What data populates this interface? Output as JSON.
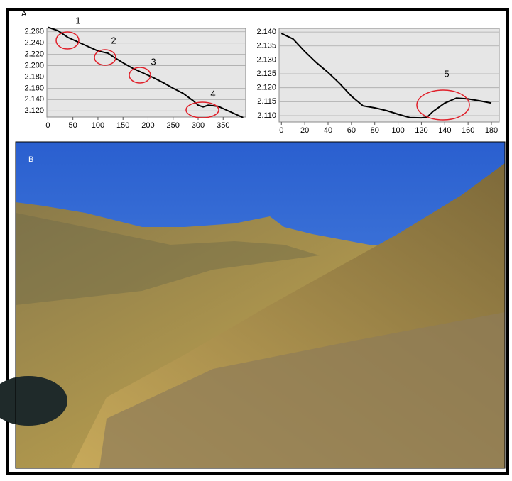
{
  "panel_labels": [
    "A",
    "B"
  ],
  "chart_data": [
    {
      "type": "line",
      "color": "#000000",
      "grid": true,
      "x": [
        0,
        20,
        40,
        60,
        80,
        100,
        120,
        130,
        150,
        170,
        190,
        210,
        230,
        250,
        270,
        290,
        300,
        310,
        320,
        340,
        360,
        380,
        390
      ],
      "values": [
        2.268,
        2.262,
        2.25,
        2.242,
        2.234,
        2.226,
        2.222,
        2.216,
        2.205,
        2.195,
        2.187,
        2.179,
        2.17,
        2.16,
        2.151,
        2.138,
        2.13,
        2.127,
        2.13,
        2.128,
        2.12,
        2.112,
        2.108
      ],
      "xlim": [
        -2,
        395
      ],
      "ylim": [
        2.109,
        2.266
      ],
      "xticks": [
        0,
        50,
        100,
        150,
        200,
        250,
        300,
        350
      ],
      "yticks": [
        {
          "value": 2.12,
          "label": "2.120"
        },
        {
          "value": 2.14,
          "label": "2.140"
        },
        {
          "value": 2.16,
          "label": "2.160"
        },
        {
          "value": 2.18,
          "label": "2.180"
        },
        {
          "value": 2.2,
          "label": "2.200"
        },
        {
          "value": 2.22,
          "label": "2.220"
        },
        {
          "value": 2.24,
          "label": "2.240"
        },
        {
          "value": 2.26,
          "label": "2.260"
        }
      ],
      "annotations": [
        "1",
        "2",
        "3",
        "4"
      ]
    },
    {
      "type": "line",
      "color": "#000000",
      "grid": true,
      "x": [
        0,
        10,
        20,
        30,
        40,
        50,
        60,
        70,
        80,
        90,
        100,
        110,
        120,
        125,
        130,
        140,
        150,
        160,
        170,
        180
      ],
      "values": [
        2.1395,
        2.1375,
        2.133,
        2.129,
        2.1255,
        2.1215,
        2.117,
        2.1135,
        2.1128,
        2.1118,
        2.1105,
        2.1093,
        2.1092,
        2.1095,
        2.1115,
        2.1145,
        2.1163,
        2.116,
        2.1153,
        2.1145
      ],
      "xlim": [
        -2,
        186.7
      ],
      "ylim": [
        2.1077,
        2.1413
      ],
      "xticks": [
        0,
        20,
        40,
        60,
        80,
        100,
        120,
        140,
        160,
        180
      ],
      "yticks": [
        {
          "value": 2.11,
          "label": "2.110"
        },
        {
          "value": 2.115,
          "label": "2.115"
        },
        {
          "value": 2.12,
          "label": "2.120"
        },
        {
          "value": 2.125,
          "label": "2.125"
        },
        {
          "value": 2.13,
          "label": "2.130"
        },
        {
          "value": 2.135,
          "label": "2.135"
        },
        {
          "value": 2.14,
          "label": "2.140"
        }
      ],
      "annotations": [
        "5"
      ]
    }
  ]
}
